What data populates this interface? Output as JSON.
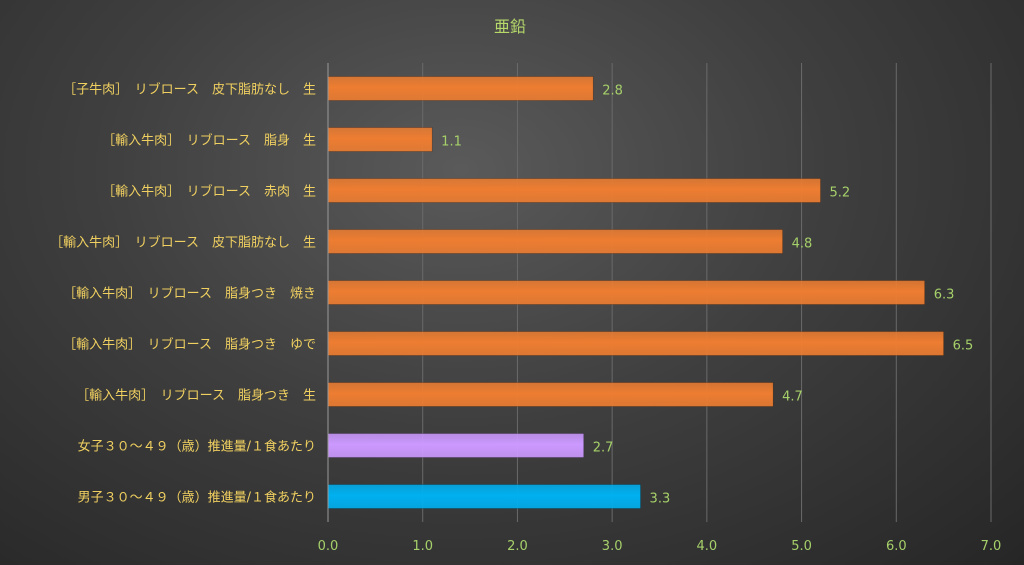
{
  "chart_data": {
    "type": "bar",
    "orientation": "horizontal",
    "title": "亜鉛",
    "categories": [
      "［子牛肉］　リブロース　皮下脂肪なし　生",
      "［輸入牛肉］　リブロース　脂身　生",
      "［輸入牛肉］　リブロース　赤肉　生",
      "［輸入牛肉］　リブロース　皮下脂肪なし　生",
      "［輸入牛肉］　リブロース　脂身つき　焼き",
      "［輸入牛肉］　リブロース　脂身つき　ゆで",
      "［輸入牛肉］　リブロース　脂身つき　生",
      "女子３０～４９（歳）推進量/１食あたり",
      "男子３０～４９（歳）推進量/１食あたり"
    ],
    "values": [
      2.8,
      1.1,
      5.2,
      4.8,
      6.3,
      6.5,
      4.7,
      2.7,
      3.3
    ],
    "value_labels": [
      "2.8",
      "1.1",
      "5.2",
      "4.8",
      "6.3",
      "6.5",
      "4.7",
      "2.7",
      "3.3"
    ],
    "bar_colors": [
      "#ed7d31",
      "#ed7d31",
      "#ed7d31",
      "#ed7d31",
      "#ed7d31",
      "#ed7d31",
      "#ed7d31",
      "#cc99ff",
      "#00b0f0"
    ],
    "xlim": [
      0,
      7
    ],
    "x_ticks": [
      "0.0",
      "1.0",
      "2.0",
      "3.0",
      "4.0",
      "5.0",
      "6.0",
      "7.0"
    ],
    "grid": true,
    "legend": "none"
  }
}
